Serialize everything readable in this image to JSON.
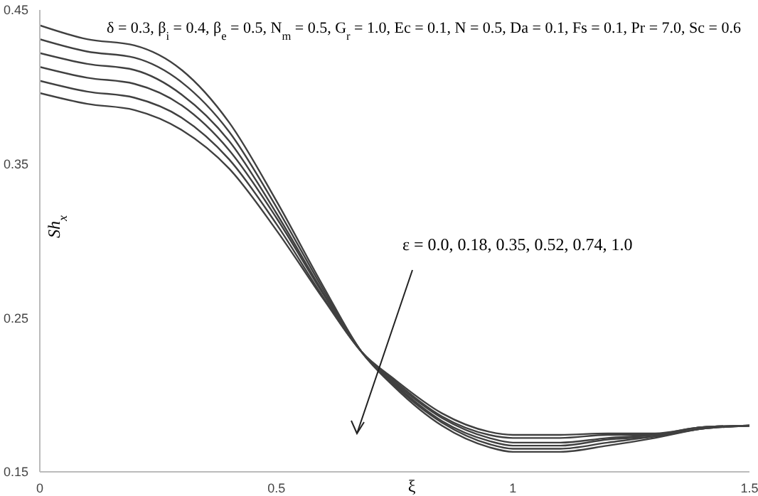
{
  "chart_data": {
    "type": "line",
    "xlabel": "ξ",
    "ylabel": "Sh$_{x}$",
    "annotations": [
      "δ = 0.3, β$_{i}$ = 0.4, β$_{e}$ = 0.5, N$_{m}$ = 0.5, G$_{r}$ = 1.0, Ec = 0.1, N = 0.5, Da = 0.1, Fs = 0.1, Pr = 7.0, Sc = 0.6",
      "ε = 0.0, 0.18, 0.35, 0.52, 0.74, 1.0"
    ],
    "x": [
      0,
      0.1,
      0.2,
      0.3,
      0.4,
      0.5,
      0.6,
      0.68,
      0.75,
      0.85,
      0.95,
      1.0,
      1.1,
      1.2,
      1.3,
      1.4,
      1.5
    ],
    "series": [
      {
        "color": "#404040",
        "values": [
          0.44,
          0.431,
          0.427,
          0.411,
          0.377,
          0.326,
          0.27,
          0.228,
          0.205,
          0.18,
          0.166,
          0.163,
          0.163,
          0.167,
          0.172,
          0.178,
          0.18
        ]
      },
      {
        "color": "#404040",
        "values": [
          0.431,
          0.423,
          0.419,
          0.403,
          0.371,
          0.322,
          0.268,
          0.228,
          0.206,
          0.182,
          0.168,
          0.165,
          0.165,
          0.169,
          0.173,
          0.178,
          0.18
        ]
      },
      {
        "color": "#404040",
        "values": [
          0.422,
          0.415,
          0.411,
          0.395,
          0.365,
          0.318,
          0.266,
          0.228,
          0.207,
          0.183,
          0.17,
          0.167,
          0.167,
          0.171,
          0.173,
          0.178,
          0.18
        ]
      },
      {
        "color": "#404040",
        "values": [
          0.413,
          0.406,
          0.402,
          0.388,
          0.359,
          0.315,
          0.265,
          0.228,
          0.208,
          0.185,
          0.172,
          0.169,
          0.169,
          0.172,
          0.174,
          0.179,
          0.18
        ]
      },
      {
        "color": "#404040",
        "values": [
          0.404,
          0.397,
          0.393,
          0.38,
          0.353,
          0.311,
          0.263,
          0.228,
          0.209,
          0.186,
          0.174,
          0.172,
          0.172,
          0.174,
          0.174,
          0.179,
          0.18
        ]
      },
      {
        "color": "#404040",
        "values": [
          0.396,
          0.389,
          0.385,
          0.372,
          0.347,
          0.307,
          0.262,
          0.228,
          0.21,
          0.188,
          0.176,
          0.174,
          0.174,
          0.175,
          0.175,
          0.179,
          0.18
        ]
      }
    ],
    "xlim": [
      0,
      1.5
    ],
    "xticks": [
      0,
      0.5,
      1,
      1.5
    ],
    "ylim": [
      0.15,
      0.45
    ],
    "yticks": [
      0.15,
      0.25,
      0.35,
      0.45
    ],
    "grid": false,
    "legend": false,
    "marker": "none",
    "line_style": "solid"
  }
}
